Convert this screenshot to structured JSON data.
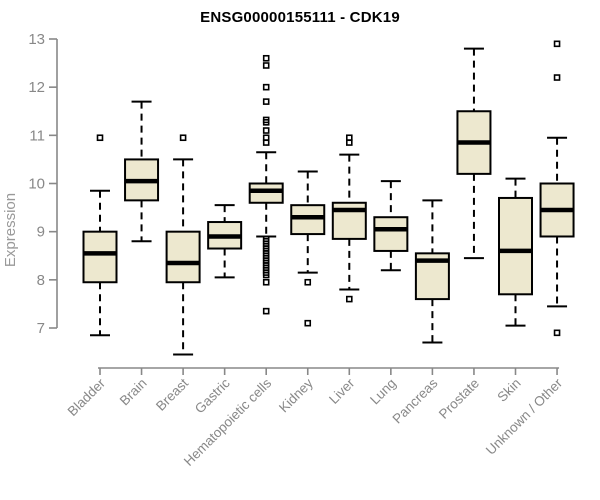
{
  "chart_data": {
    "type": "boxplot",
    "title": "ENSG00000155111 - CDK19",
    "ylabel": "Expression",
    "xlabel": "",
    "ylim": [
      7,
      13
    ],
    "yticks": [
      7,
      8,
      9,
      10,
      11,
      12,
      13
    ],
    "grid": false,
    "legend": "none",
    "categories": [
      "Bladder",
      "Brain",
      "Breast",
      "Gastric",
      "Hematopoietic cells",
      "Kidney",
      "Liver",
      "Lung",
      "Pancreas",
      "Prostate",
      "Skin",
      "Unknown / Other"
    ],
    "series": [
      {
        "name": "Bladder",
        "whisker_low": 6.85,
        "q1": 7.95,
        "median": 8.55,
        "q3": 9.0,
        "whisker_high": 9.85,
        "outliers": [
          10.95
        ]
      },
      {
        "name": "Brain",
        "whisker_low": 8.8,
        "q1": 9.65,
        "median": 10.05,
        "q3": 10.5,
        "whisker_high": 11.7,
        "outliers": []
      },
      {
        "name": "Breast",
        "whisker_low": 6.45,
        "q1": 7.95,
        "median": 8.35,
        "q3": 9.0,
        "whisker_high": 10.5,
        "outliers": [
          10.95
        ]
      },
      {
        "name": "Gastric",
        "whisker_low": 8.05,
        "q1": 8.65,
        "median": 8.9,
        "q3": 9.2,
        "whisker_high": 9.55,
        "outliers": []
      },
      {
        "name": "Hematopoietic cells",
        "whisker_low": 8.9,
        "q1": 9.6,
        "median": 9.85,
        "q3": 10.0,
        "whisker_high": 10.65,
        "outliers": [
          12.6,
          12.45,
          12.0,
          11.7,
          11.32,
          11.27,
          11.1,
          10.95,
          10.85,
          8.85,
          8.8,
          8.75,
          8.7,
          8.65,
          8.6,
          8.55,
          8.5,
          8.45,
          8.4,
          8.35,
          8.3,
          8.25,
          8.2,
          8.15,
          8.1,
          7.95,
          7.35
        ]
      },
      {
        "name": "Kidney",
        "whisker_low": 8.15,
        "q1": 8.95,
        "median": 9.3,
        "q3": 9.55,
        "whisker_high": 10.25,
        "outliers": [
          7.95,
          7.1
        ]
      },
      {
        "name": "Liver",
        "whisker_low": 7.8,
        "q1": 8.85,
        "median": 9.45,
        "q3": 9.6,
        "whisker_high": 10.6,
        "outliers": [
          10.95,
          10.85,
          7.6
        ]
      },
      {
        "name": "Lung",
        "whisker_low": 8.2,
        "q1": 8.6,
        "median": 9.05,
        "q3": 9.3,
        "whisker_high": 10.05,
        "outliers": []
      },
      {
        "name": "Pancreas",
        "whisker_low": 6.7,
        "q1": 7.6,
        "median": 8.4,
        "q3": 8.55,
        "whisker_high": 9.65,
        "outliers": []
      },
      {
        "name": "Prostate",
        "whisker_low": 8.45,
        "q1": 10.2,
        "median": 10.85,
        "q3": 11.5,
        "whisker_high": 12.8,
        "outliers": []
      },
      {
        "name": "Skin",
        "whisker_low": 7.05,
        "q1": 7.7,
        "median": 8.6,
        "q3": 9.7,
        "whisker_high": 10.1,
        "outliers": []
      },
      {
        "name": "Unknown / Other",
        "whisker_low": 7.45,
        "q1": 8.9,
        "median": 9.45,
        "q3": 10.0,
        "whisker_high": 10.95,
        "outliers": [
          12.9,
          12.2,
          6.9
        ]
      }
    ],
    "colors": {
      "box_fill": "#ede8cf",
      "box_border": "#000000",
      "median": "#000000",
      "whisker": "#000000",
      "outlier": "#000000",
      "axis": "#888888",
      "tick_label": "#888888",
      "category_label": "#888888",
      "title": "#000000",
      "ylabel": "#999999",
      "background": "#ffffff"
    }
  }
}
